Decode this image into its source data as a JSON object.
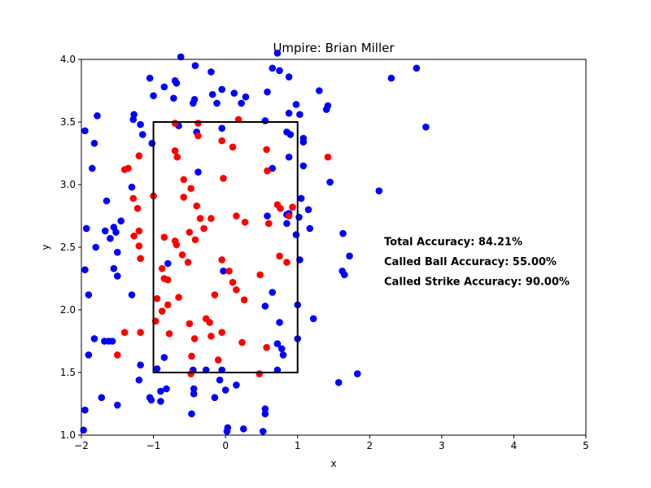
{
  "chart_data": {
    "type": "scatter",
    "title": "Umpire: Brian Miller",
    "xlabel": "x",
    "ylabel": "y",
    "xlim": [
      -2,
      5
    ],
    "ylim": [
      1.0,
      4.0
    ],
    "xticks": [
      "−2",
      "−1",
      "0",
      "1",
      "2",
      "3",
      "4",
      "5"
    ],
    "xtick_values": [
      -2,
      -1,
      0,
      1,
      2,
      3,
      4,
      5
    ],
    "yticks": [
      "1.0",
      "1.5",
      "2.0",
      "2.5",
      "3.0",
      "3.5",
      "4.0"
    ],
    "ytick_values": [
      1.0,
      1.5,
      2.0,
      2.5,
      3.0,
      3.5,
      4.0
    ],
    "grid": false,
    "strike_zone": {
      "x": [
        -1,
        1
      ],
      "y": [
        1.5,
        3.5
      ],
      "color": "#000000"
    },
    "annotations": [
      {
        "text": "Total Accuracy: 84.21%",
        "x": 2.2,
        "y": 2.55
      },
      {
        "text": "Called Ball Accuracy: 55.00%",
        "x": 2.2,
        "y": 2.39
      },
      {
        "text": "Called Strike Accuracy: 90.00%",
        "x": 2.2,
        "y": 2.23
      }
    ],
    "series": [
      {
        "color": "#0000ff",
        "points": [
          [
            -1.95,
            3.43
          ],
          [
            -1.93,
            2.65
          ],
          [
            -1.95,
            2.32
          ],
          [
            -1.9,
            2.12
          ],
          [
            -1.9,
            1.64
          ],
          [
            -1.95,
            1.2
          ],
          [
            -1.97,
            1.04
          ],
          [
            -1.85,
            3.13
          ],
          [
            -1.82,
            3.33
          ],
          [
            -1.78,
            3.55
          ],
          [
            -1.8,
            2.5
          ],
          [
            -1.82,
            1.77
          ],
          [
            -1.72,
            1.3
          ],
          [
            -1.68,
            1.75
          ],
          [
            -1.62,
            1.75
          ],
          [
            -1.57,
            1.75
          ],
          [
            -1.65,
            2.87
          ],
          [
            -1.67,
            2.63
          ],
          [
            -1.6,
            2.57
          ],
          [
            -1.55,
            2.66
          ],
          [
            -1.52,
            2.62
          ],
          [
            -1.5,
            2.46
          ],
          [
            -1.55,
            2.33
          ],
          [
            -1.5,
            2.27
          ],
          [
            -1.45,
            2.71
          ],
          [
            -1.5,
            1.24
          ],
          [
            -1.27,
            3.56
          ],
          [
            -1.28,
            3.52
          ],
          [
            -1.3,
            2.98
          ],
          [
            -1.3,
            2.12
          ],
          [
            -1.18,
            3.48
          ],
          [
            -1.15,
            3.4
          ],
          [
            -1.2,
            1.44
          ],
          [
            -1.18,
            1.56
          ],
          [
            -1.05,
            3.85
          ],
          [
            -1.0,
            3.71
          ],
          [
            -1.02,
            3.33
          ],
          [
            -1.05,
            1.3
          ],
          [
            -1.03,
            1.28
          ],
          [
            -0.95,
            1.53
          ],
          [
            -0.9,
            1.27
          ],
          [
            -0.9,
            1.35
          ],
          [
            -0.85,
            3.78
          ],
          [
            -0.82,
            1.37
          ],
          [
            -0.8,
            2.37
          ],
          [
            -0.85,
            1.62
          ],
          [
            -0.72,
            3.69
          ],
          [
            -0.7,
            3.83
          ],
          [
            -0.68,
            3.81
          ],
          [
            -0.65,
            3.47
          ],
          [
            -0.62,
            4.02
          ],
          [
            -0.42,
            3.95
          ],
          [
            -0.45,
            3.65
          ],
          [
            -0.43,
            3.68
          ],
          [
            -0.4,
            3.42
          ],
          [
            -0.38,
            3.1
          ],
          [
            -0.2,
            3.9
          ],
          [
            -0.18,
            3.72
          ],
          [
            -0.12,
            3.65
          ],
          [
            -0.05,
            3.76
          ],
          [
            -0.05,
            3.45
          ],
          [
            -0.03,
            2.31
          ],
          [
            -0.45,
            1.52
          ],
          [
            -0.44,
            1.37
          ],
          [
            -0.44,
            1.33
          ],
          [
            -0.47,
            1.17
          ],
          [
            -0.27,
            1.52
          ],
          [
            -0.15,
            1.3
          ],
          [
            -0.08,
            1.44
          ],
          [
            -0.05,
            1.52
          ],
          [
            0.0,
            1.36
          ],
          [
            0.02,
            1.03
          ],
          [
            0.03,
            1.06
          ],
          [
            0.15,
            1.4
          ],
          [
            0.12,
            3.73
          ],
          [
            0.22,
            3.65
          ],
          [
            0.28,
            3.7
          ],
          [
            0.55,
            3.51
          ],
          [
            0.58,
            3.74
          ],
          [
            0.65,
            3.93
          ],
          [
            0.75,
            3.91
          ],
          [
            0.72,
            4.05
          ],
          [
            0.88,
            3.86
          ],
          [
            0.88,
            3.57
          ],
          [
            0.85,
            3.42
          ],
          [
            0.9,
            3.4
          ],
          [
            0.88,
            3.22
          ],
          [
            0.98,
            3.64
          ],
          [
            1.03,
            3.56
          ],
          [
            1.08,
            3.37
          ],
          [
            1.08,
            3.34
          ],
          [
            1.08,
            3.15
          ],
          [
            0.65,
            3.13
          ],
          [
            0.58,
            2.75
          ],
          [
            0.85,
            2.76
          ],
          [
            0.88,
            2.77
          ],
          [
            0.85,
            2.69
          ],
          [
            0.98,
            2.6
          ],
          [
            1.02,
            2.74
          ],
          [
            1.05,
            2.89
          ],
          [
            1.15,
            2.8
          ],
          [
            1.17,
            2.65
          ],
          [
            1.03,
            2.4
          ],
          [
            0.65,
            2.14
          ],
          [
            0.55,
            2.03
          ],
          [
            1.0,
            2.04
          ],
          [
            1.22,
            1.93
          ],
          [
            0.75,
            1.9
          ],
          [
            0.72,
            1.73
          ],
          [
            0.78,
            1.69
          ],
          [
            0.8,
            1.64
          ],
          [
            1.0,
            1.77
          ],
          [
            0.72,
            1.52
          ],
          [
            0.55,
            1.21
          ],
          [
            0.55,
            1.17
          ],
          [
            0.52,
            1.03
          ],
          [
            0.25,
            1.05
          ],
          [
            1.3,
            3.75
          ],
          [
            1.42,
            3.63
          ],
          [
            1.4,
            3.6
          ],
          [
            1.45,
            3.02
          ],
          [
            1.63,
            2.61
          ],
          [
            1.72,
            2.43
          ],
          [
            1.62,
            2.31
          ],
          [
            1.65,
            2.28
          ],
          [
            1.57,
            1.42
          ],
          [
            1.83,
            1.49
          ],
          [
            2.13,
            2.95
          ],
          [
            2.3,
            3.85
          ],
          [
            2.65,
            3.93
          ],
          [
            2.78,
            3.46
          ]
        ]
      },
      {
        "color": "#ff0000",
        "points": [
          [
            -1.4,
            3.12
          ],
          [
            -1.35,
            3.13
          ],
          [
            -1.2,
            3.23
          ],
          [
            -1.28,
            2.89
          ],
          [
            -1.22,
            2.81
          ],
          [
            -1.27,
            2.59
          ],
          [
            -1.2,
            2.63
          ],
          [
            -1.2,
            2.51
          ],
          [
            -1.18,
            2.41
          ],
          [
            -1.0,
            2.91
          ],
          [
            -0.85,
            2.58
          ],
          [
            -0.8,
            2.24
          ],
          [
            -0.88,
            2.33
          ],
          [
            -0.85,
            2.25
          ],
          [
            -0.95,
            2.09
          ],
          [
            -0.8,
            2.04
          ],
          [
            -0.88,
            1.99
          ],
          [
            -0.97,
            1.91
          ],
          [
            -0.78,
            1.81
          ],
          [
            -1.4,
            1.82
          ],
          [
            -1.18,
            1.82
          ],
          [
            -1.5,
            1.64
          ],
          [
            -0.7,
            3.49
          ],
          [
            -0.7,
            3.27
          ],
          [
            -0.67,
            3.22
          ],
          [
            -0.58,
            3.04
          ],
          [
            -0.58,
            2.9
          ],
          [
            -0.48,
            2.97
          ],
          [
            -0.38,
            3.39
          ],
          [
            -0.38,
            3.49
          ],
          [
            -0.35,
            2.73
          ],
          [
            -0.4,
            2.83
          ],
          [
            -0.3,
            2.65
          ],
          [
            -0.2,
            2.73
          ],
          [
            -0.7,
            2.55
          ],
          [
            -0.68,
            2.52
          ],
          [
            -0.6,
            2.44
          ],
          [
            -0.5,
            2.62
          ],
          [
            -0.52,
            2.38
          ],
          [
            -0.42,
            2.56
          ],
          [
            -0.65,
            2.1
          ],
          [
            -0.5,
            1.89
          ],
          [
            -0.27,
            1.93
          ],
          [
            -0.22,
            1.9
          ],
          [
            -0.43,
            1.77
          ],
          [
            -0.2,
            1.79
          ],
          [
            -0.05,
            1.82
          ],
          [
            -0.47,
            1.63
          ],
          [
            -0.1,
            1.6
          ],
          [
            -0.48,
            1.49
          ],
          [
            -0.05,
            3.35
          ],
          [
            0.1,
            3.3
          ],
          [
            0.18,
            3.52
          ],
          [
            -0.03,
            3.05
          ],
          [
            0.15,
            2.75
          ],
          [
            0.27,
            2.7
          ],
          [
            -0.05,
            2.4
          ],
          [
            0.05,
            2.31
          ],
          [
            0.1,
            2.22
          ],
          [
            0.15,
            2.16
          ],
          [
            0.26,
            2.08
          ],
          [
            -0.15,
            2.12
          ],
          [
            0.23,
            1.74
          ],
          [
            0.47,
            1.49
          ],
          [
            0.57,
            1.7
          ],
          [
            0.48,
            2.28
          ],
          [
            0.57,
            3.28
          ],
          [
            0.58,
            3.11
          ],
          [
            0.6,
            2.69
          ],
          [
            0.72,
            2.84
          ],
          [
            0.76,
            2.81
          ],
          [
            0.88,
            2.75
          ],
          [
            0.93,
            2.82
          ],
          [
            0.75,
            2.43
          ],
          [
            0.85,
            2.38
          ],
          [
            1.42,
            3.22
          ]
        ]
      }
    ]
  }
}
